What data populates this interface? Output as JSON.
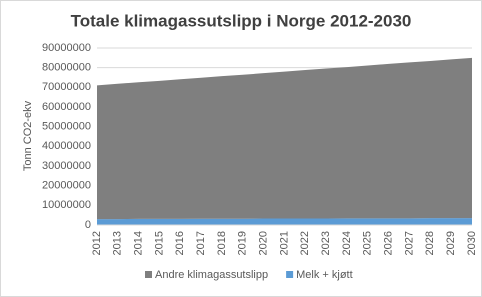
{
  "chart_data": {
    "type": "area",
    "stacked": true,
    "title": "Totale klimagassutslipp i Norge 2012-2030",
    "y_label": "Tonn CO2-ekv",
    "categories": [
      "2012",
      "2013",
      "2014",
      "2015",
      "2016",
      "2017",
      "2018",
      "2019",
      "2020",
      "2021",
      "2022",
      "2023",
      "2024",
      "2025",
      "2026",
      "2027",
      "2028",
      "2029",
      "2030"
    ],
    "series": [
      {
        "name": "Melk + kjøtt",
        "color": "#5b9bd5",
        "values": [
          3000000,
          3000000,
          3100000,
          3100000,
          3100000,
          3200000,
          3200000,
          3200000,
          3300000,
          3300000,
          3300000,
          3300000,
          3400000,
          3400000,
          3400000,
          3400000,
          3500000,
          3500000,
          3500000
        ]
      },
      {
        "name": "Andre klimagassutslipp",
        "color": "#7f7f7f",
        "values": [
          68000000,
          68800000,
          69500000,
          70200000,
          71000000,
          71700000,
          72500000,
          73200000,
          73900000,
          74700000,
          75500000,
          76300000,
          76900000,
          77700000,
          78500000,
          79300000,
          79900000,
          80700000,
          81500000
        ]
      }
    ],
    "ylim": [
      0,
      90000000
    ],
    "yticks": [
      0,
      10000000,
      20000000,
      30000000,
      40000000,
      50000000,
      60000000,
      70000000,
      80000000,
      90000000
    ],
    "grid": true,
    "legend": "bottom"
  }
}
